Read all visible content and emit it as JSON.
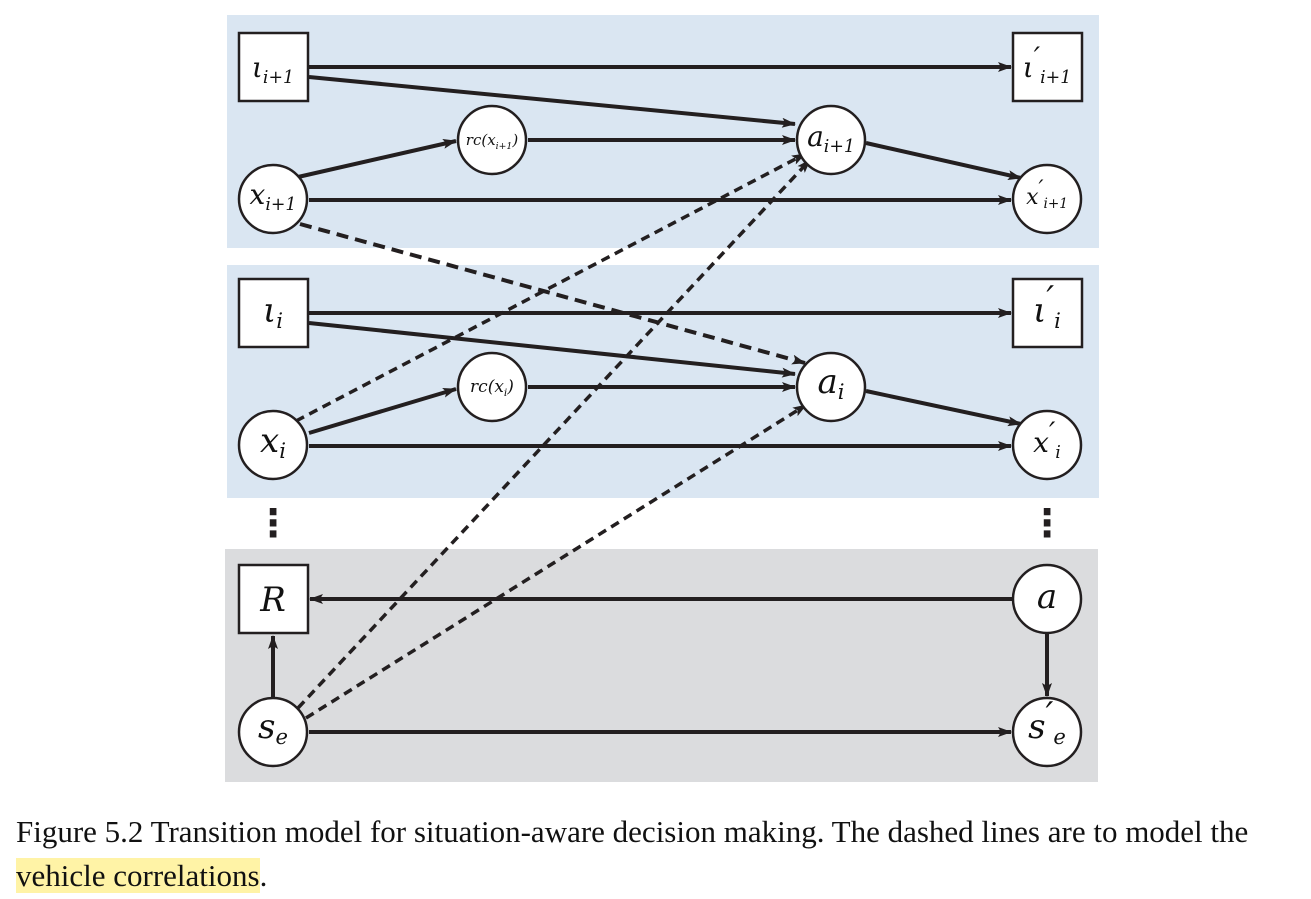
{
  "figure": {
    "caption_prefix": "Figure 5.2 Transition model for situation-aware decision making. The dashed lines are to model the ",
    "caption_highlight": "vehicle correlations",
    "caption_suffix": "."
  },
  "colors": {
    "band_blue": "#dae6f2",
    "band_gray": "#dbdcde",
    "stroke": "#231f20"
  },
  "nodes": {
    "iota_ip1": {
      "base": "ι",
      "sub": "i+1",
      "prime": false
    },
    "iota_ip1_prime": {
      "base": "ι",
      "sub": "i+1",
      "prime": true
    },
    "rc_xip1": {
      "text": "rc(x",
      "sub": "i+1",
      "close": ")"
    },
    "a_ip1": {
      "base": "a",
      "sub": "i+1"
    },
    "x_ip1": {
      "base": "x",
      "sub": "i+1"
    },
    "x_ip1_prime": {
      "base": "x",
      "sub": "i+1",
      "prime": true
    },
    "iota_i": {
      "base": "ι",
      "sub": "i"
    },
    "iota_i_prime": {
      "base": "ι",
      "sub": "i",
      "prime": true
    },
    "rc_xi": {
      "text": "rc(x",
      "sub": "i",
      "close": ")"
    },
    "a_i": {
      "base": "a",
      "sub": "i"
    },
    "x_i": {
      "base": "x",
      "sub": "i"
    },
    "x_i_prime": {
      "base": "x",
      "sub": "i",
      "prime": true
    },
    "R": {
      "base": "R"
    },
    "a": {
      "base": "a"
    },
    "s_e": {
      "base": "s",
      "sub": "e"
    },
    "s_e_prime": {
      "base": "s",
      "sub": "e",
      "prime": true
    }
  },
  "ellipsis": "⋮",
  "prime_mark": "′"
}
